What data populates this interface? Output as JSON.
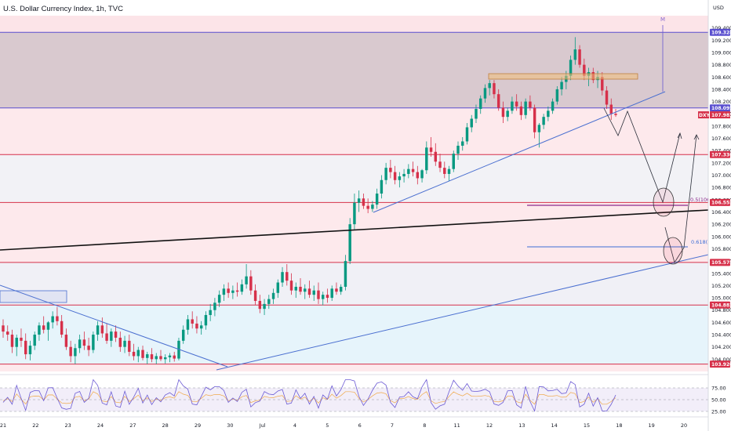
{
  "header": {
    "title": "U.S. Dollar Currency Index, 1h, TVC"
  },
  "axis": {
    "currency": "USD"
  },
  "chart_data": {
    "type": "candlestick",
    "symbol": "DXY",
    "ylim": [
      103.8,
      109.6
    ],
    "y_ticks": [
      "109.400",
      "109.200",
      "109.000",
      "108.800",
      "108.600",
      "108.400",
      "108.200",
      "108.000",
      "107.800",
      "107.600",
      "107.400",
      "107.200",
      "107.000",
      "106.800",
      "106.600",
      "106.400",
      "106.200",
      "106.000",
      "105.800",
      "105.600",
      "105.400",
      "105.200",
      "105.000",
      "104.800",
      "104.600",
      "104.400",
      "104.200",
      "104.000"
    ],
    "x_ticks": [
      "21",
      "22",
      "23",
      "24",
      "27",
      "28",
      "29",
      "30",
      "Jul",
      "4",
      "5",
      "6",
      "7",
      "8",
      "11",
      "12",
      "13",
      "14",
      "15",
      "18",
      "19",
      "20"
    ],
    "price_lines": [
      {
        "value": 109.328,
        "label": "109.328",
        "color": "#5a4fcf"
      },
      {
        "value": 108.095,
        "label": "108.095",
        "color": "#5a4fcf"
      },
      {
        "value": 107.336,
        "label": "107.336",
        "color": "#d6304a"
      },
      {
        "value": 106.555,
        "label": "106.555",
        "color": "#d6304a"
      },
      {
        "value": 105.578,
        "label": "105.578",
        "color": "#d6304a"
      },
      {
        "value": 104.882,
        "label": "104.882",
        "color": "#d6304a"
      },
      {
        "value": 103.92,
        "label": "103.920",
        "color": "#d6304a"
      }
    ],
    "last_price": {
      "value": 107.983,
      "label": "107.983",
      "symbol": "DXY"
    },
    "fib_levels": [
      {
        "label": "0.5(106.",
        "value": 106.52,
        "color": "#8b2a8c"
      },
      {
        "label": "0.618(10",
        "value": 105.82,
        "color": "#3d6fd6"
      }
    ],
    "extra_tick": "109.400",
    "annotation_letter": "M",
    "candles": [
      [
        104.55,
        104.65,
        104.35,
        104.45
      ],
      [
        104.45,
        104.55,
        104.3,
        104.4
      ],
      [
        104.4,
        104.48,
        104.1,
        104.2
      ],
      [
        104.2,
        104.4,
        104.05,
        104.35
      ],
      [
        104.35,
        104.5,
        104.2,
        104.3
      ],
      [
        104.3,
        104.42,
        104.0,
        104.08
      ],
      [
        104.08,
        104.3,
        103.98,
        104.22
      ],
      [
        104.22,
        104.45,
        104.15,
        104.4
      ],
      [
        104.4,
        104.6,
        104.3,
        104.55
      ],
      [
        104.55,
        104.7,
        104.42,
        104.48
      ],
      [
        104.48,
        104.62,
        104.3,
        104.6
      ],
      [
        104.6,
        104.78,
        104.5,
        104.7
      ],
      [
        104.7,
        104.85,
        104.55,
        104.62
      ],
      [
        104.62,
        104.72,
        104.35,
        104.4
      ],
      [
        104.4,
        104.5,
        104.15,
        104.2
      ],
      [
        104.2,
        104.3,
        103.95,
        104.05
      ],
      [
        104.05,
        104.25,
        103.92,
        104.18
      ],
      [
        104.18,
        104.4,
        104.1,
        104.32
      ],
      [
        104.32,
        104.45,
        104.15,
        104.22
      ],
      [
        104.22,
        104.35,
        104.05,
        104.15
      ],
      [
        104.15,
        104.45,
        104.1,
        104.4
      ],
      [
        104.4,
        104.62,
        104.3,
        104.55
      ],
      [
        104.55,
        104.68,
        104.35,
        104.42
      ],
      [
        104.42,
        104.58,
        104.25,
        104.3
      ],
      [
        104.3,
        104.5,
        104.2,
        104.45
      ],
      [
        104.45,
        104.55,
        104.28,
        104.35
      ],
      [
        104.35,
        104.45,
        104.12,
        104.2
      ],
      [
        104.2,
        104.38,
        104.1,
        104.3
      ],
      [
        104.3,
        104.4,
        104.05,
        104.12
      ],
      [
        104.12,
        104.25,
        103.98,
        104.05
      ],
      [
        104.05,
        104.2,
        103.95,
        104.15
      ],
      [
        104.15,
        104.22,
        103.98,
        104.02
      ],
      [
        104.02,
        104.12,
        103.92,
        104.08
      ],
      [
        104.08,
        104.18,
        103.95,
        104.0
      ],
      [
        104.0,
        104.1,
        103.92,
        104.05
      ],
      [
        104.05,
        104.15,
        103.97,
        104.0
      ],
      [
        104.0,
        104.08,
        103.93,
        104.03
      ],
      [
        104.03,
        104.1,
        103.95,
        104.06
      ],
      [
        104.06,
        104.12,
        103.96,
        104.01
      ],
      [
        104.01,
        104.35,
        103.98,
        104.3
      ],
      [
        104.3,
        104.55,
        104.25,
        104.48
      ],
      [
        104.48,
        104.72,
        104.4,
        104.65
      ],
      [
        104.65,
        104.78,
        104.5,
        104.58
      ],
      [
        104.58,
        104.7,
        104.42,
        104.5
      ],
      [
        104.5,
        104.62,
        104.4,
        104.55
      ],
      [
        104.55,
        104.78,
        104.48,
        104.72
      ],
      [
        104.72,
        104.9,
        104.62,
        104.8
      ],
      [
        104.8,
        105.0,
        104.7,
        104.92
      ],
      [
        104.92,
        105.12,
        104.85,
        105.05
      ],
      [
        105.05,
        105.22,
        104.95,
        105.15
      ],
      [
        105.15,
        105.25,
        105.0,
        105.08
      ],
      [
        105.08,
        105.2,
        104.98,
        105.12
      ],
      [
        105.12,
        105.25,
        105.02,
        105.1
      ],
      [
        105.1,
        105.3,
        105.05,
        105.22
      ],
      [
        105.22,
        105.55,
        105.15,
        105.35
      ],
      [
        105.35,
        105.45,
        105.05,
        105.12
      ],
      [
        105.12,
        105.22,
        104.88,
        104.95
      ],
      [
        104.95,
        105.05,
        104.75,
        104.82
      ],
      [
        104.82,
        104.98,
        104.72,
        104.9
      ],
      [
        104.9,
        105.05,
        104.82,
        104.98
      ],
      [
        104.98,
        105.15,
        104.9,
        105.08
      ],
      [
        105.08,
        105.3,
        105.0,
        105.25
      ],
      [
        105.25,
        105.5,
        105.18,
        105.42
      ],
      [
        105.42,
        105.55,
        105.2,
        105.28
      ],
      [
        105.28,
        105.4,
        105.05,
        105.12
      ],
      [
        105.12,
        105.25,
        105.0,
        105.18
      ],
      [
        105.18,
        105.32,
        105.05,
        105.1
      ],
      [
        105.1,
        105.22,
        104.98,
        105.15
      ],
      [
        105.15,
        105.28,
        105.0,
        105.05
      ],
      [
        105.05,
        105.2,
        104.95,
        105.12
      ],
      [
        105.12,
        105.25,
        104.9,
        104.98
      ],
      [
        104.98,
        105.1,
        104.88,
        105.05
      ],
      [
        105.05,
        105.15,
        104.92,
        105.0
      ],
      [
        105.0,
        105.2,
        104.95,
        105.15
      ],
      [
        105.15,
        105.25,
        105.05,
        105.1
      ],
      [
        105.1,
        105.22,
        105.05,
        105.18
      ],
      [
        105.18,
        105.7,
        105.12,
        105.6
      ],
      [
        105.6,
        106.3,
        105.55,
        106.2
      ],
      [
        106.2,
        106.7,
        106.1,
        106.55
      ],
      [
        106.55,
        106.75,
        106.4,
        106.62
      ],
      [
        106.62,
        106.7,
        106.45,
        106.5
      ],
      [
        106.5,
        106.62,
        106.38,
        106.45
      ],
      [
        106.45,
        106.58,
        106.4,
        106.52
      ],
      [
        106.52,
        106.78,
        106.45,
        106.7
      ],
      [
        106.7,
        107.0,
        106.62,
        106.92
      ],
      [
        106.92,
        107.2,
        106.85,
        107.12
      ],
      [
        107.12,
        107.25,
        106.95,
        107.05
      ],
      [
        107.05,
        107.15,
        106.85,
        106.92
      ],
      [
        106.92,
        107.05,
        106.8,
        106.98
      ],
      [
        106.98,
        107.1,
        106.88,
        107.02
      ],
      [
        107.02,
        107.18,
        106.95,
        107.1
      ],
      [
        107.1,
        107.22,
        106.98,
        107.05
      ],
      [
        107.05,
        107.15,
        106.85,
        106.95
      ],
      [
        106.95,
        107.1,
        106.88,
        107.08
      ],
      [
        107.08,
        107.55,
        107.02,
        107.45
      ],
      [
        107.45,
        107.62,
        107.3,
        107.38
      ],
      [
        107.38,
        107.52,
        107.15,
        107.22
      ],
      [
        107.22,
        107.35,
        107.05,
        107.12
      ],
      [
        107.12,
        107.22,
        106.95,
        107.02
      ],
      [
        107.02,
        107.15,
        106.9,
        107.1
      ],
      [
        107.1,
        107.4,
        107.05,
        107.35
      ],
      [
        107.35,
        107.55,
        107.25,
        107.48
      ],
      [
        107.48,
        107.62,
        107.4,
        107.55
      ],
      [
        107.55,
        107.85,
        107.5,
        107.78
      ],
      [
        107.78,
        107.98,
        107.7,
        107.92
      ],
      [
        107.92,
        108.15,
        107.85,
        108.08
      ],
      [
        108.08,
        108.3,
        108.0,
        108.25
      ],
      [
        108.25,
        108.48,
        108.18,
        108.42
      ],
      [
        108.42,
        108.55,
        108.3,
        108.5
      ],
      [
        108.5,
        108.55,
        108.25,
        108.32
      ],
      [
        108.32,
        108.4,
        108.05,
        108.1
      ],
      [
        108.1,
        108.2,
        107.85,
        107.95
      ],
      [
        107.95,
        108.1,
        107.88,
        108.05
      ],
      [
        108.05,
        108.28,
        108.0,
        108.2
      ],
      [
        108.2,
        108.32,
        108.05,
        108.12
      ],
      [
        108.12,
        108.2,
        107.9,
        107.98
      ],
      [
        107.98,
        108.25,
        107.92,
        108.2
      ],
      [
        108.2,
        108.3,
        108.05,
        108.1
      ],
      [
        108.1,
        108.15,
        107.6,
        107.7
      ],
      [
        107.7,
        107.85,
        107.45,
        107.82
      ],
      [
        107.82,
        108.0,
        107.75,
        107.95
      ],
      [
        107.95,
        108.12,
        107.88,
        108.05
      ],
      [
        108.05,
        108.25,
        108.0,
        108.2
      ],
      [
        108.2,
        108.45,
        108.15,
        108.4
      ],
      [
        108.4,
        108.6,
        108.3,
        108.52
      ],
      [
        108.52,
        108.7,
        108.4,
        108.62
      ],
      [
        108.62,
        108.95,
        108.55,
        108.88
      ],
      [
        108.88,
        109.25,
        108.8,
        109.05
      ],
      [
        109.05,
        109.12,
        108.75,
        108.8
      ],
      [
        108.8,
        108.9,
        108.55,
        108.62
      ],
      [
        108.62,
        108.75,
        108.45,
        108.68
      ],
      [
        108.68,
        108.75,
        108.5,
        108.55
      ],
      [
        108.55,
        108.7,
        108.42,
        108.6
      ],
      [
        108.6,
        108.68,
        108.3,
        108.38
      ],
      [
        108.38,
        108.45,
        108.08,
        108.15
      ],
      [
        108.15,
        108.25,
        107.9,
        108.0
      ],
      [
        108.0,
        108.08,
        107.95,
        107.98
      ]
    ],
    "rsi": {
      "levels": [
        "75.00",
        "50.00",
        "25.00"
      ]
    }
  }
}
